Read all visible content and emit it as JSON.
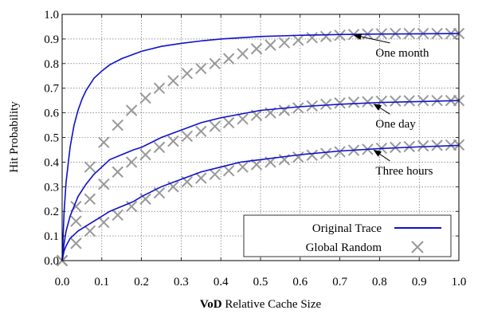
{
  "chart_data": {
    "type": "line",
    "title": "",
    "xlabel_bold": "VoD",
    "xlabel_rest": " Relative Cache Size",
    "ylabel": "Hit Probability",
    "xlim": [
      0,
      1
    ],
    "ylim": [
      0,
      1
    ],
    "xticks": [
      0.0,
      0.1,
      0.2,
      0.3,
      0.4,
      0.5,
      0.6,
      0.7,
      0.8,
      0.9,
      1.0
    ],
    "xtick_labels": [
      "0.0",
      "0.1",
      "0.2",
      "0.3",
      "0.4",
      "0.5",
      "0.6",
      "0.7",
      "0.8",
      "0.9",
      "1.0"
    ],
    "yticks": [
      0.0,
      0.1,
      0.2,
      0.3,
      0.4,
      0.5,
      0.6,
      0.7,
      0.8,
      0.9,
      1.0
    ],
    "ytick_labels": [
      "0.0",
      "0.1",
      "0.2",
      "0.3",
      "0.4",
      "0.5",
      "0.6",
      "0.7",
      "0.8",
      "0.9",
      "1.0"
    ],
    "grid": true,
    "legend_position": "bottom-right",
    "legend": {
      "original": "Original Trace",
      "random": "Global Random"
    },
    "colors": {
      "original": "#1010cc",
      "random": "#999999"
    },
    "series": [
      {
        "name": "Original Trace",
        "group": "One month",
        "style": "line",
        "x": [
          0,
          0.005,
          0.01,
          0.02,
          0.03,
          0.04,
          0.05,
          0.06,
          0.08,
          0.1,
          0.12,
          0.15,
          0.2,
          0.25,
          0.3,
          0.35,
          0.4,
          0.5,
          0.6,
          0.7,
          0.8,
          0.9,
          1.0
        ],
        "y": [
          0,
          0.2,
          0.32,
          0.46,
          0.55,
          0.61,
          0.655,
          0.69,
          0.74,
          0.77,
          0.795,
          0.82,
          0.85,
          0.87,
          0.882,
          0.892,
          0.9,
          0.91,
          0.915,
          0.918,
          0.92,
          0.921,
          0.922
        ]
      },
      {
        "name": "Global Random",
        "group": "One month",
        "style": "markers",
        "x": [
          0,
          0.035,
          0.07,
          0.105,
          0.14,
          0.175,
          0.21,
          0.245,
          0.28,
          0.315,
          0.35,
          0.385,
          0.42,
          0.455,
          0.49,
          0.525,
          0.56,
          0.595,
          0.63,
          0.665,
          0.7,
          0.735,
          0.77,
          0.805,
          0.84,
          0.875,
          0.91,
          0.945,
          0.98,
          1.0
        ],
        "y": [
          0,
          0.22,
          0.38,
          0.48,
          0.55,
          0.61,
          0.66,
          0.7,
          0.73,
          0.76,
          0.78,
          0.8,
          0.82,
          0.84,
          0.86,
          0.875,
          0.885,
          0.895,
          0.905,
          0.91,
          0.915,
          0.918,
          0.92,
          0.921,
          0.922,
          0.922,
          0.922,
          0.922,
          0.922,
          0.922
        ]
      },
      {
        "name": "Original Trace",
        "group": "One day",
        "style": "line",
        "x": [
          0,
          0.005,
          0.01,
          0.02,
          0.04,
          0.06,
          0.08,
          0.1,
          0.12,
          0.15,
          0.18,
          0.2,
          0.25,
          0.3,
          0.35,
          0.4,
          0.45,
          0.5,
          0.6,
          0.7,
          0.8,
          0.9,
          1.0
        ],
        "y": [
          0,
          0.07,
          0.12,
          0.18,
          0.26,
          0.31,
          0.35,
          0.38,
          0.41,
          0.43,
          0.45,
          0.46,
          0.5,
          0.53,
          0.56,
          0.58,
          0.595,
          0.61,
          0.625,
          0.635,
          0.642,
          0.646,
          0.65
        ]
      },
      {
        "name": "Global Random",
        "group": "One day",
        "style": "markers",
        "x": [
          0,
          0.035,
          0.07,
          0.105,
          0.14,
          0.175,
          0.21,
          0.245,
          0.28,
          0.315,
          0.35,
          0.385,
          0.42,
          0.455,
          0.49,
          0.525,
          0.56,
          0.595,
          0.63,
          0.665,
          0.7,
          0.735,
          0.77,
          0.805,
          0.84,
          0.875,
          0.91,
          0.945,
          0.98,
          1.0
        ],
        "y": [
          0,
          0.16,
          0.25,
          0.31,
          0.36,
          0.4,
          0.43,
          0.46,
          0.485,
          0.505,
          0.525,
          0.545,
          0.56,
          0.575,
          0.59,
          0.6,
          0.61,
          0.62,
          0.628,
          0.635,
          0.64,
          0.643,
          0.645,
          0.647,
          0.648,
          0.649,
          0.65,
          0.65,
          0.65,
          0.65
        ]
      },
      {
        "name": "Original Trace",
        "group": "Three hours",
        "style": "line",
        "x": [
          0,
          0.005,
          0.01,
          0.02,
          0.04,
          0.06,
          0.08,
          0.1,
          0.12,
          0.15,
          0.18,
          0.2,
          0.25,
          0.3,
          0.35,
          0.4,
          0.45,
          0.5,
          0.6,
          0.7,
          0.8,
          0.9,
          1.0
        ],
        "y": [
          0,
          0.04,
          0.06,
          0.09,
          0.12,
          0.14,
          0.16,
          0.18,
          0.2,
          0.22,
          0.24,
          0.26,
          0.3,
          0.33,
          0.36,
          0.38,
          0.4,
          0.41,
          0.43,
          0.445,
          0.455,
          0.462,
          0.468
        ]
      },
      {
        "name": "Global Random",
        "group": "Three hours",
        "style": "markers",
        "x": [
          0,
          0.035,
          0.07,
          0.105,
          0.14,
          0.175,
          0.21,
          0.245,
          0.28,
          0.315,
          0.35,
          0.385,
          0.42,
          0.455,
          0.49,
          0.525,
          0.56,
          0.595,
          0.63,
          0.665,
          0.7,
          0.735,
          0.77,
          0.805,
          0.84,
          0.875,
          0.91,
          0.945,
          0.98,
          1.0
        ],
        "y": [
          0,
          0.07,
          0.12,
          0.155,
          0.185,
          0.22,
          0.25,
          0.275,
          0.3,
          0.32,
          0.335,
          0.35,
          0.365,
          0.38,
          0.39,
          0.4,
          0.41,
          0.42,
          0.428,
          0.435,
          0.442,
          0.448,
          0.452,
          0.456,
          0.46,
          0.463,
          0.466,
          0.468,
          0.469,
          0.47
        ]
      }
    ],
    "annotations": [
      {
        "text": "One month",
        "x": 0.73,
        "y": 0.922,
        "tx": 0.79,
        "ty": 0.845
      },
      {
        "text": "One day",
        "x": 0.78,
        "y": 0.642,
        "tx": 0.79,
        "ty": 0.556
      },
      {
        "text": "Three hours",
        "x": 0.78,
        "y": 0.455,
        "tx": 0.79,
        "ty": 0.366
      }
    ]
  }
}
